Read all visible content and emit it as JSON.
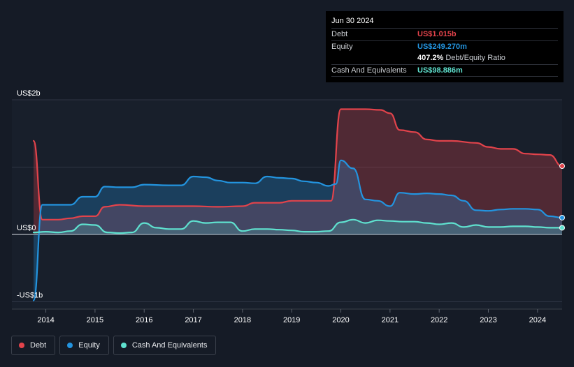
{
  "tooltip": {
    "date": "Jun 30 2024",
    "debt_label": "Debt",
    "debt_value": "US$1.015b",
    "equity_label": "Equity",
    "equity_value": "US$249.270m",
    "ratio_value": "407.2%",
    "ratio_label": "Debt/Equity Ratio",
    "cash_label": "Cash And Equivalents",
    "cash_value": "US$98.886m"
  },
  "legend": {
    "debt": "Debt",
    "equity": "Equity",
    "cash": "Cash And Equivalents"
  },
  "colors": {
    "debt": "#e2434b",
    "equity": "#2394df",
    "cash": "#5fe1cf",
    "background": "#151b26"
  },
  "chart_data": {
    "type": "area",
    "title": "",
    "xlabel": "",
    "ylabel": "",
    "y_tick_labels": [
      "US$2b",
      "US$0",
      "-US$1b"
    ],
    "y_ticks": [
      2,
      0,
      -1
    ],
    "ylim": [
      -1.12,
      2.04
    ],
    "xlim": [
      2013.75,
      2024.5
    ],
    "x_tick_labels": [
      "2014",
      "2015",
      "2016",
      "2017",
      "2018",
      "2019",
      "2020",
      "2021",
      "2022",
      "2023",
      "2024"
    ],
    "x_ticks": [
      2014,
      2015,
      2016,
      2017,
      2018,
      2019,
      2020,
      2021,
      2022,
      2023,
      2024
    ],
    "grid": true,
    "legend_position": "bottom-left",
    "unit": "US$ billions",
    "series": [
      {
        "name": "Debt",
        "points": [
          [
            2013.75,
            1.39
          ],
          [
            2013.93,
            0.22
          ],
          [
            2014.25,
            0.22
          ],
          [
            2014.5,
            0.24
          ],
          [
            2014.75,
            0.27
          ],
          [
            2015.0,
            0.27
          ],
          [
            2015.2,
            0.41
          ],
          [
            2015.5,
            0.44
          ],
          [
            2016.0,
            0.42
          ],
          [
            2016.5,
            0.42
          ],
          [
            2017.0,
            0.42
          ],
          [
            2017.5,
            0.41
          ],
          [
            2018.0,
            0.42
          ],
          [
            2018.25,
            0.47
          ],
          [
            2018.75,
            0.47
          ],
          [
            2019.0,
            0.5
          ],
          [
            2019.5,
            0.5
          ],
          [
            2019.8,
            0.5
          ],
          [
            2020.0,
            1.86
          ],
          [
            2020.5,
            1.86
          ],
          [
            2020.8,
            1.85
          ],
          [
            2021.0,
            1.8
          ],
          [
            2021.2,
            1.55
          ],
          [
            2021.5,
            1.52
          ],
          [
            2021.75,
            1.41
          ],
          [
            2022.0,
            1.39
          ],
          [
            2022.25,
            1.39
          ],
          [
            2022.75,
            1.36
          ],
          [
            2023.0,
            1.3
          ],
          [
            2023.25,
            1.27
          ],
          [
            2023.5,
            1.27
          ],
          [
            2023.75,
            1.2
          ],
          [
            2024.0,
            1.19
          ],
          [
            2024.25,
            1.18
          ],
          [
            2024.5,
            1.015
          ]
        ]
      },
      {
        "name": "Equity",
        "points": [
          [
            2013.75,
            -0.98
          ],
          [
            2013.93,
            0.44
          ],
          [
            2014.25,
            0.44
          ],
          [
            2014.5,
            0.44
          ],
          [
            2014.75,
            0.56
          ],
          [
            2015.0,
            0.56
          ],
          [
            2015.2,
            0.71
          ],
          [
            2015.5,
            0.7
          ],
          [
            2015.75,
            0.7
          ],
          [
            2016.0,
            0.74
          ],
          [
            2016.5,
            0.73
          ],
          [
            2016.75,
            0.73
          ],
          [
            2017.0,
            0.86
          ],
          [
            2017.25,
            0.85
          ],
          [
            2017.5,
            0.8
          ],
          [
            2017.75,
            0.77
          ],
          [
            2018.0,
            0.77
          ],
          [
            2018.25,
            0.76
          ],
          [
            2018.5,
            0.86
          ],
          [
            2018.75,
            0.84
          ],
          [
            2019.0,
            0.83
          ],
          [
            2019.25,
            0.79
          ],
          [
            2019.5,
            0.77
          ],
          [
            2019.75,
            0.72
          ],
          [
            2019.9,
            0.75
          ],
          [
            2020.0,
            1.1
          ],
          [
            2020.25,
            0.98
          ],
          [
            2020.5,
            0.52
          ],
          [
            2020.75,
            0.5
          ],
          [
            2021.0,
            0.42
          ],
          [
            2021.2,
            0.62
          ],
          [
            2021.5,
            0.6
          ],
          [
            2021.75,
            0.61
          ],
          [
            2022.0,
            0.6
          ],
          [
            2022.25,
            0.58
          ],
          [
            2022.5,
            0.5
          ],
          [
            2022.75,
            0.36
          ],
          [
            2023.0,
            0.35
          ],
          [
            2023.25,
            0.37
          ],
          [
            2023.5,
            0.38
          ],
          [
            2023.75,
            0.38
          ],
          [
            2024.0,
            0.37
          ],
          [
            2024.25,
            0.27
          ],
          [
            2024.5,
            0.249
          ]
        ]
      },
      {
        "name": "Cash And Equivalents",
        "points": [
          [
            2013.75,
            0.03
          ],
          [
            2014.0,
            0.04
          ],
          [
            2014.25,
            0.03
          ],
          [
            2014.5,
            0.05
          ],
          [
            2014.75,
            0.15
          ],
          [
            2015.0,
            0.14
          ],
          [
            2015.25,
            0.03
          ],
          [
            2015.5,
            0.02
          ],
          [
            2015.75,
            0.03
          ],
          [
            2016.0,
            0.17
          ],
          [
            2016.25,
            0.1
          ],
          [
            2016.5,
            0.08
          ],
          [
            2016.75,
            0.08
          ],
          [
            2017.0,
            0.2
          ],
          [
            2017.25,
            0.17
          ],
          [
            2017.5,
            0.18
          ],
          [
            2017.75,
            0.18
          ],
          [
            2018.0,
            0.05
          ],
          [
            2018.25,
            0.08
          ],
          [
            2018.5,
            0.08
          ],
          [
            2018.75,
            0.07
          ],
          [
            2019.0,
            0.06
          ],
          [
            2019.25,
            0.04
          ],
          [
            2019.5,
            0.04
          ],
          [
            2019.75,
            0.05
          ],
          [
            2020.0,
            0.18
          ],
          [
            2020.25,
            0.22
          ],
          [
            2020.5,
            0.17
          ],
          [
            2020.75,
            0.21
          ],
          [
            2021.0,
            0.2
          ],
          [
            2021.25,
            0.19
          ],
          [
            2021.5,
            0.19
          ],
          [
            2021.75,
            0.17
          ],
          [
            2022.0,
            0.15
          ],
          [
            2022.25,
            0.17
          ],
          [
            2022.5,
            0.11
          ],
          [
            2022.75,
            0.14
          ],
          [
            2023.0,
            0.11
          ],
          [
            2023.25,
            0.11
          ],
          [
            2023.5,
            0.12
          ],
          [
            2023.75,
            0.12
          ],
          [
            2024.0,
            0.11
          ],
          [
            2024.25,
            0.1
          ],
          [
            2024.5,
            0.099
          ]
        ]
      }
    ]
  }
}
